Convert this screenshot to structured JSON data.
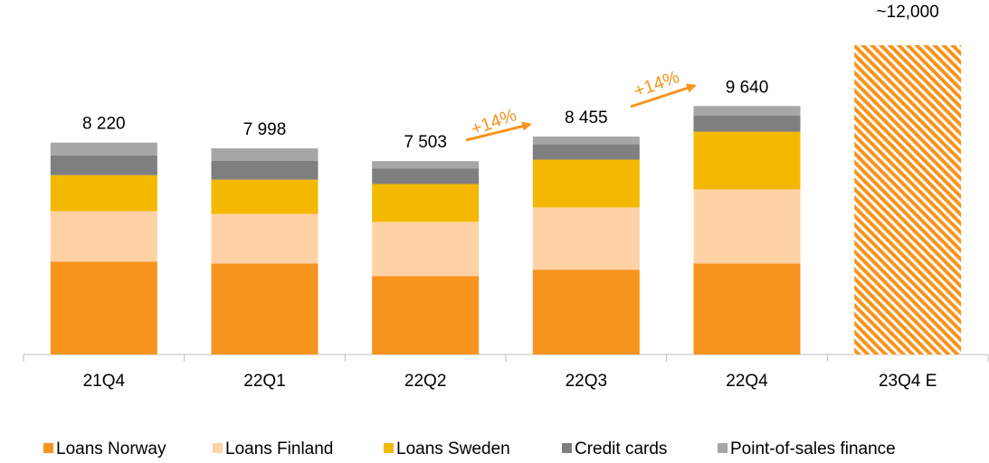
{
  "chart_data": {
    "type": "stacked_bar",
    "categories": [
      "21Q4",
      "22Q1",
      "22Q2",
      "22Q3",
      "22Q4",
      "23Q4 E"
    ],
    "series": [
      {
        "name": "Loans Norway",
        "color": "#F7941D",
        "values": [
          3600,
          3530,
          3045,
          3290,
          3535,
          null
        ]
      },
      {
        "name": "Loans Finland",
        "color": "#FFD2A6",
        "values": [
          1960,
          1925,
          2100,
          2415,
          2870,
          null
        ]
      },
      {
        "name": "Loans Sweden",
        "color": "#F5B800",
        "values": [
          1400,
          1330,
          1470,
          1855,
          2240,
          null
        ]
      },
      {
        "name": "Credit cards",
        "color": "#7F7F7F",
        "values": [
          770,
          735,
          595,
          595,
          630,
          null
        ]
      },
      {
        "name": "Point-of-sales finance",
        "color": "#A6A6A6",
        "values": [
          490,
          478,
          293,
          300,
          365,
          null
        ]
      }
    ],
    "totals": {
      "values": [
        8220,
        7998,
        7503,
        8455,
        9640,
        12000
      ],
      "value_labels": [
        "8 220",
        "7 998",
        "7 503",
        "8 455",
        "9 640",
        "~12,000"
      ]
    },
    "estimate_color": "#F7941D",
    "annotations": [
      {
        "text": "+14%"
      },
      {
        "text": "+14%"
      }
    ],
    "annotation_color": "#F7941D",
    "ylim": [
      0,
      12000
    ],
    "legend": "bottom"
  }
}
